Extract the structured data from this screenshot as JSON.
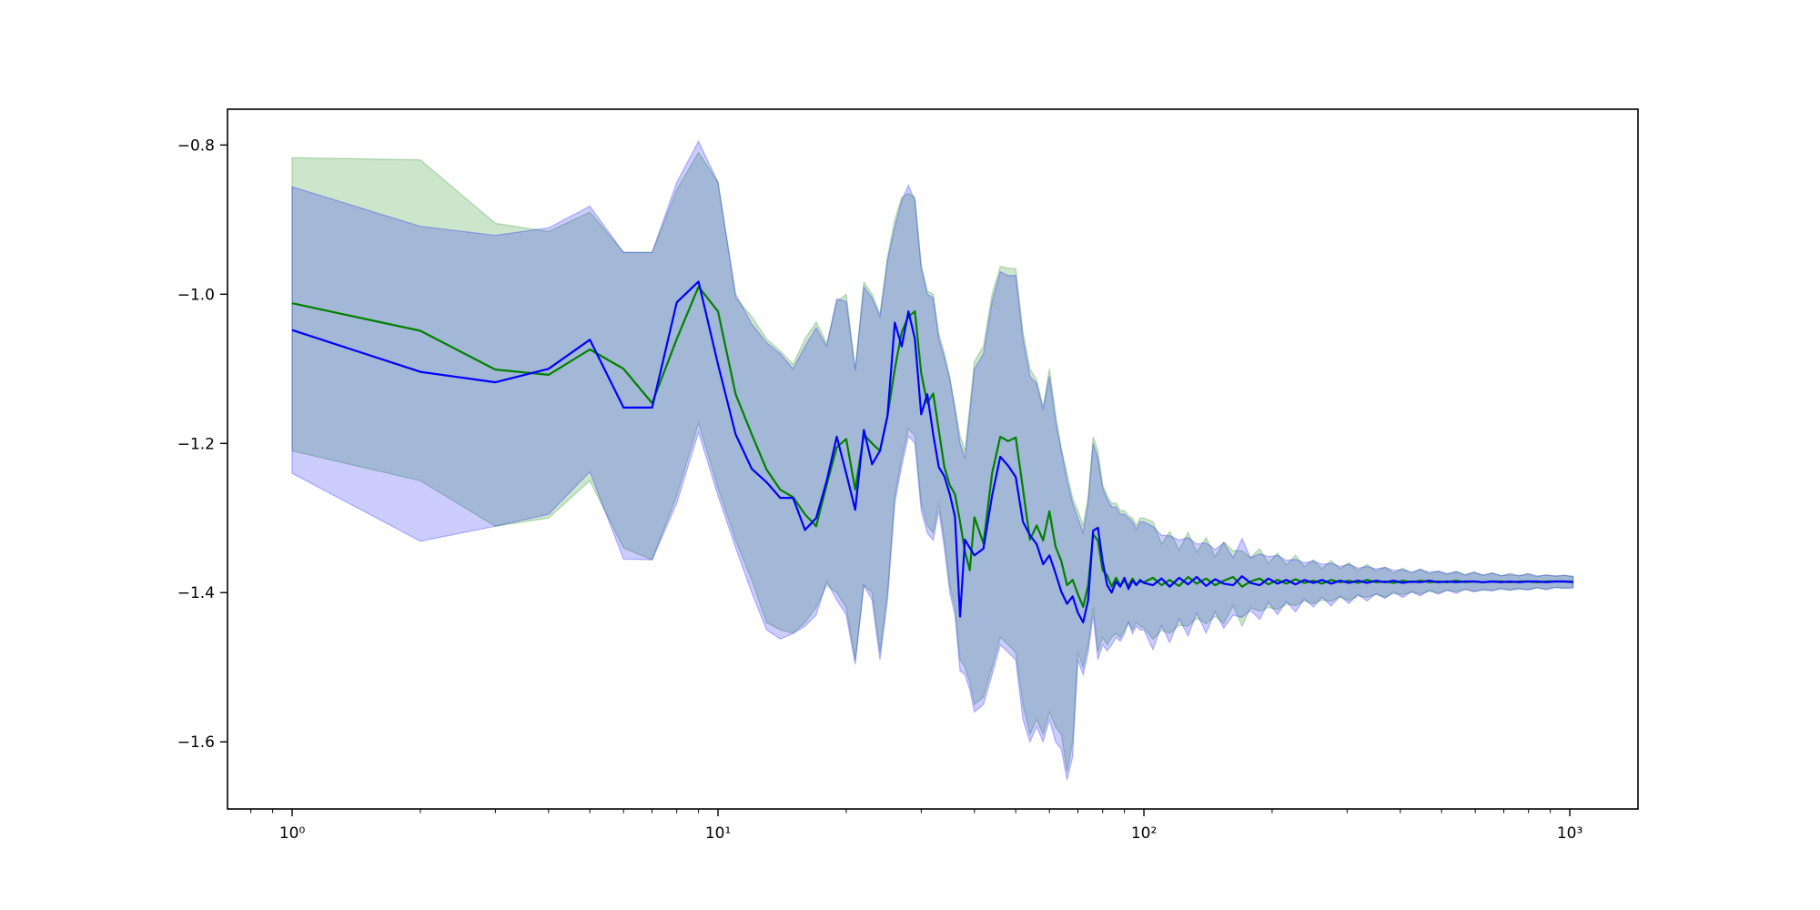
{
  "figure": {
    "background": "#ffffff"
  },
  "chart_data": {
    "type": "line",
    "title": "",
    "xlabel": "",
    "ylabel": "",
    "xscale": "log",
    "xlim": [
      0.705,
      1446
    ],
    "ylim": [
      -1.69,
      -0.752
    ],
    "grid": false,
    "legend": "none",
    "axes_color": "#000000",
    "xticks": [
      {
        "v": 1,
        "label": "10⁰"
      },
      {
        "v": 10,
        "label": "10¹"
      },
      {
        "v": 100,
        "label": "10²"
      },
      {
        "v": 1000,
        "label": "10³"
      }
    ],
    "yticks": [
      {
        "v": -0.8,
        "label": "−0.8"
      },
      {
        "v": -1.0,
        "label": "−1.0"
      },
      {
        "v": -1.2,
        "label": "−1.2"
      },
      {
        "v": -1.4,
        "label": "−1.4"
      },
      {
        "v": -1.6,
        "label": "−1.6"
      }
    ],
    "converged_value_estimate": -1.385,
    "series": [
      {
        "name": "green-series",
        "line_color": "#008000",
        "band_color": "rgba(0,128,0,0.2)",
        "band_edge_color": "rgba(0,128,0,0.25)",
        "x": [
          1,
          2,
          3,
          4,
          5,
          6,
          7,
          8,
          9,
          10,
          11,
          12,
          13,
          14,
          15,
          16,
          17,
          18,
          19,
          20,
          21,
          22,
          23,
          24,
          25,
          26,
          27,
          28,
          29,
          30,
          31,
          32,
          33,
          34,
          35,
          36,
          37,
          38,
          39,
          40,
          42,
          44,
          46,
          48,
          50,
          52,
          54,
          56,
          58,
          60,
          62,
          64,
          66,
          68,
          70,
          72,
          74,
          76,
          78,
          80,
          82,
          84,
          86,
          88,
          90,
          92,
          94,
          96,
          98,
          100
        ],
        "mean": [
          -1.012,
          -1.049,
          -1.101,
          -1.108,
          -1.074,
          -1.1,
          -1.146,
          -1.06,
          -0.99,
          -1.023,
          -1.134,
          -1.188,
          -1.235,
          -1.262,
          -1.272,
          -1.295,
          -1.311,
          -1.255,
          -1.205,
          -1.194,
          -1.262,
          -1.188,
          -1.2,
          -1.21,
          -1.163,
          -1.1,
          -1.051,
          -1.03,
          -1.023,
          -1.106,
          -1.146,
          -1.133,
          -1.183,
          -1.232,
          -1.256,
          -1.268,
          -1.305,
          -1.345,
          -1.37,
          -1.299,
          -1.334,
          -1.24,
          -1.191,
          -1.197,
          -1.192,
          -1.261,
          -1.329,
          -1.31,
          -1.33,
          -1.291,
          -1.338,
          -1.358,
          -1.39,
          -1.383,
          -1.402,
          -1.419,
          -1.39,
          -1.322,
          -1.33,
          -1.37,
          -1.377,
          -1.392,
          -1.38,
          -1.39,
          -1.384,
          -1.391,
          -1.381,
          -1.389,
          -1.385,
          -1.386
        ],
        "hi": [
          -0.817,
          -0.82,
          -0.905,
          -0.916,
          -0.89,
          -0.944,
          -0.944,
          -0.86,
          -0.81,
          -0.85,
          -1.005,
          -1.03,
          -1.06,
          -1.076,
          -1.094,
          -1.06,
          -1.037,
          -1.066,
          -1.01,
          -1.0,
          -1.1,
          -0.984,
          -1.0,
          -1.027,
          -0.95,
          -0.9,
          -0.87,
          -0.865,
          -0.87,
          -0.96,
          -0.996,
          -1.0,
          -1.053,
          -1.08,
          -1.11,
          -1.15,
          -1.19,
          -1.21,
          -1.15,
          -1.09,
          -1.07,
          -1.0,
          -0.963,
          -0.965,
          -0.966,
          -1.05,
          -1.1,
          -1.115,
          -1.151,
          -1.1,
          -1.16,
          -1.207,
          -1.24,
          -1.273,
          -1.29,
          -1.31,
          -1.27,
          -1.191,
          -1.21,
          -1.256,
          -1.27,
          -1.28,
          -1.28,
          -1.29,
          -1.29,
          -1.297,
          -1.3,
          -1.31,
          -1.3,
          -1.3
        ],
        "lo": [
          -1.21,
          -1.25,
          -1.311,
          -1.3,
          -1.25,
          -1.34,
          -1.356,
          -1.27,
          -1.173,
          -1.26,
          -1.33,
          -1.383,
          -1.44,
          -1.45,
          -1.454,
          -1.44,
          -1.42,
          -1.39,
          -1.4,
          -1.42,
          -1.49,
          -1.39,
          -1.4,
          -1.48,
          -1.4,
          -1.27,
          -1.22,
          -1.18,
          -1.19,
          -1.28,
          -1.31,
          -1.32,
          -1.28,
          -1.33,
          -1.39,
          -1.42,
          -1.49,
          -1.5,
          -1.52,
          -1.55,
          -1.54,
          -1.5,
          -1.46,
          -1.47,
          -1.48,
          -1.55,
          -1.59,
          -1.57,
          -1.59,
          -1.56,
          -1.58,
          -1.59,
          -1.64,
          -1.6,
          -1.48,
          -1.5,
          -1.47,
          -1.42,
          -1.48,
          -1.46,
          -1.47,
          -1.46,
          -1.455,
          -1.46,
          -1.45,
          -1.44,
          -1.45,
          -1.44,
          -1.445,
          -1.447
        ]
      },
      {
        "name": "blue-series",
        "line_color": "#0000ff",
        "band_color": "rgba(0,0,255,0.2)",
        "band_edge_color": "rgba(0,0,255,0.25)",
        "x": [
          1,
          2,
          3,
          4,
          5,
          6,
          7,
          8,
          9,
          10,
          11,
          12,
          13,
          14,
          15,
          16,
          17,
          18,
          19,
          20,
          21,
          22,
          23,
          24,
          25,
          26,
          27,
          28,
          29,
          30,
          31,
          32,
          33,
          34,
          35,
          36,
          37,
          38,
          39,
          40,
          42,
          44,
          46,
          48,
          50,
          52,
          54,
          56,
          58,
          60,
          62,
          64,
          66,
          68,
          70,
          72,
          74,
          76,
          78,
          80,
          82,
          84,
          86,
          88,
          90,
          92,
          94,
          96,
          98,
          100
        ],
        "mean": [
          -1.048,
          -1.104,
          -1.118,
          -1.1,
          -1.061,
          -1.152,
          -1.152,
          -1.011,
          -0.983,
          -1.094,
          -1.188,
          -1.234,
          -1.252,
          -1.273,
          -1.273,
          -1.316,
          -1.3,
          -1.25,
          -1.191,
          -1.24,
          -1.289,
          -1.182,
          -1.228,
          -1.21,
          -1.163,
          -1.038,
          -1.07,
          -1.023,
          -1.06,
          -1.161,
          -1.134,
          -1.188,
          -1.232,
          -1.244,
          -1.268,
          -1.298,
          -1.432,
          -1.329,
          -1.34,
          -1.35,
          -1.341,
          -1.27,
          -1.218,
          -1.23,
          -1.245,
          -1.305,
          -1.323,
          -1.335,
          -1.362,
          -1.35,
          -1.374,
          -1.399,
          -1.415,
          -1.405,
          -1.427,
          -1.44,
          -1.41,
          -1.317,
          -1.313,
          -1.358,
          -1.39,
          -1.4,
          -1.385,
          -1.392,
          -1.38,
          -1.395,
          -1.384,
          -1.39,
          -1.383,
          -1.387
        ],
        "hi": [
          -0.856,
          -0.909,
          -0.921,
          -0.911,
          -0.882,
          -0.944,
          -0.944,
          -0.85,
          -0.795,
          -0.85,
          -1.0,
          -1.04,
          -1.065,
          -1.08,
          -1.1,
          -1.07,
          -1.045,
          -1.07,
          -1.006,
          -1.01,
          -1.102,
          -0.99,
          -1.005,
          -1.03,
          -0.955,
          -0.91,
          -0.875,
          -0.854,
          -0.875,
          -0.965,
          -1.0,
          -1.005,
          -1.06,
          -1.085,
          -1.115,
          -1.155,
          -1.2,
          -1.22,
          -1.16,
          -1.1,
          -1.08,
          -1.01,
          -0.97,
          -0.975,
          -0.975,
          -1.06,
          -1.11,
          -1.12,
          -1.155,
          -1.11,
          -1.17,
          -1.21,
          -1.25,
          -1.28,
          -1.3,
          -1.32,
          -1.28,
          -1.2,
          -1.22,
          -1.26,
          -1.275,
          -1.285,
          -1.285,
          -1.295,
          -1.295,
          -1.3,
          -1.305,
          -1.315,
          -1.305,
          -1.305
        ],
        "lo": [
          -1.24,
          -1.331,
          -1.311,
          -1.295,
          -1.238,
          -1.355,
          -1.356,
          -1.28,
          -1.185,
          -1.27,
          -1.34,
          -1.4,
          -1.45,
          -1.462,
          -1.455,
          -1.445,
          -1.43,
          -1.385,
          -1.41,
          -1.43,
          -1.496,
          -1.39,
          -1.41,
          -1.49,
          -1.41,
          -1.28,
          -1.23,
          -1.19,
          -1.2,
          -1.29,
          -1.32,
          -1.33,
          -1.29,
          -1.34,
          -1.4,
          -1.43,
          -1.505,
          -1.51,
          -1.53,
          -1.56,
          -1.55,
          -1.51,
          -1.47,
          -1.48,
          -1.49,
          -1.57,
          -1.6,
          -1.58,
          -1.6,
          -1.57,
          -1.6,
          -1.61,
          -1.651,
          -1.62,
          -1.49,
          -1.51,
          -1.48,
          -1.43,
          -1.49,
          -1.47,
          -1.478,
          -1.47,
          -1.46,
          -1.465,
          -1.455,
          -1.44,
          -1.455,
          -1.445,
          -1.45,
          -1.45
        ]
      }
    ],
    "tail": {
      "x": [
        105,
        110,
        115,
        121,
        127,
        133,
        140,
        147,
        154,
        162,
        170,
        178,
        187,
        196,
        206,
        216,
        227,
        238,
        250,
        262,
        275,
        289,
        303,
        318,
        334,
        351,
        368,
        386,
        405,
        425,
        446,
        468,
        491,
        515,
        541,
        568,
        596,
        626,
        657,
        690,
        724,
        760,
        798,
        838,
        880,
        924,
        970,
        1018
      ],
      "green_mean": [
        -1.38,
        -1.39,
        -1.383,
        -1.391,
        -1.379,
        -1.388,
        -1.381,
        -1.39,
        -1.384,
        -1.379,
        -1.392,
        -1.385,
        -1.381,
        -1.389,
        -1.383,
        -1.388,
        -1.382,
        -1.387,
        -1.384,
        -1.388,
        -1.383,
        -1.386,
        -1.384,
        -1.387,
        -1.383,
        -1.386,
        -1.385,
        -1.387,
        -1.384,
        -1.386,
        -1.384,
        -1.386,
        -1.385,
        -1.386,
        -1.384,
        -1.386,
        -1.385,
        -1.386,
        -1.385,
        -1.385,
        -1.386,
        -1.385,
        -1.385,
        -1.386,
        -1.385,
        -1.385,
        -1.385,
        -1.385
      ],
      "blue_mean": [
        -1.39,
        -1.381,
        -1.392,
        -1.38,
        -1.389,
        -1.379,
        -1.391,
        -1.382,
        -1.388,
        -1.39,
        -1.378,
        -1.387,
        -1.39,
        -1.381,
        -1.388,
        -1.383,
        -1.389,
        -1.383,
        -1.387,
        -1.383,
        -1.388,
        -1.384,
        -1.387,
        -1.384,
        -1.387,
        -1.384,
        -1.386,
        -1.384,
        -1.387,
        -1.385,
        -1.386,
        -1.384,
        -1.386,
        -1.385,
        -1.386,
        -1.385,
        -1.385,
        -1.386,
        -1.385,
        -1.386,
        -1.385,
        -1.386,
        -1.385,
        -1.385,
        -1.386,
        -1.385,
        -1.385,
        -1.386
      ],
      "half_width": [
        0.075,
        0.055,
        0.065,
        0.048,
        0.06,
        0.042,
        0.055,
        0.038,
        0.052,
        0.035,
        0.048,
        0.032,
        0.04,
        0.028,
        0.036,
        0.025,
        0.032,
        0.022,
        0.028,
        0.02,
        0.026,
        0.018,
        0.024,
        0.016,
        0.021,
        0.015,
        0.019,
        0.013,
        0.017,
        0.012,
        0.016,
        0.011,
        0.014,
        0.01,
        0.013,
        0.009,
        0.012,
        0.009,
        0.011,
        0.008,
        0.01,
        0.008,
        0.01,
        0.007,
        0.009,
        0.007,
        0.008,
        0.007
      ]
    }
  }
}
